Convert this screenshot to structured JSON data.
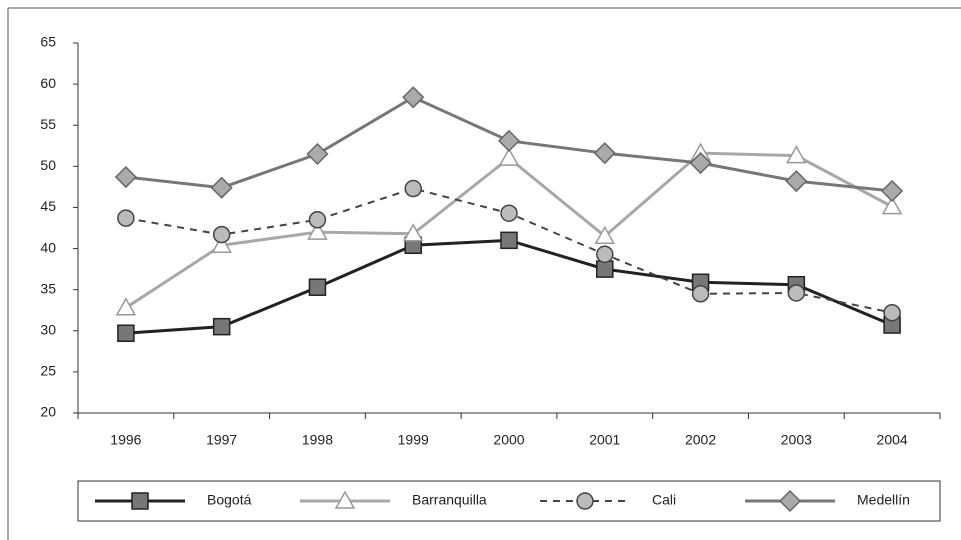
{
  "chart_data": {
    "type": "line",
    "categories": [
      "1996",
      "1997",
      "1998",
      "1999",
      "2000",
      "2001",
      "2002",
      "2003",
      "2004"
    ],
    "series": [
      {
        "name": "Bogotá",
        "color": "#222222",
        "marker": "square",
        "dash": false,
        "values": [
          29.7,
          30.5,
          35.3,
          40.4,
          41.0,
          37.5,
          35.9,
          35.6,
          30.7
        ]
      },
      {
        "name": "Barranquilla",
        "color": "#a8a8a8",
        "marker": "triangle",
        "dash": false,
        "values": [
          32.8,
          40.4,
          42.0,
          41.8,
          51.0,
          41.5,
          51.6,
          51.3,
          45.1
        ]
      },
      {
        "name": "Cali",
        "color": "#444444",
        "marker": "circle",
        "dash": true,
        "values": [
          43.7,
          41.7,
          43.5,
          47.3,
          44.3,
          39.3,
          34.5,
          34.6,
          32.2
        ]
      },
      {
        "name": "Medellín",
        "color": "#777777",
        "marker": "diamond",
        "dash": false,
        "values": [
          48.7,
          47.4,
          51.5,
          58.4,
          53.1,
          51.6,
          50.4,
          48.2,
          47.0
        ]
      }
    ],
    "ylim": [
      20,
      65
    ],
    "yticks": [
      20,
      25,
      30,
      35,
      40,
      45,
      50,
      55,
      60,
      65
    ],
    "grid": false,
    "legend": "bottom"
  }
}
